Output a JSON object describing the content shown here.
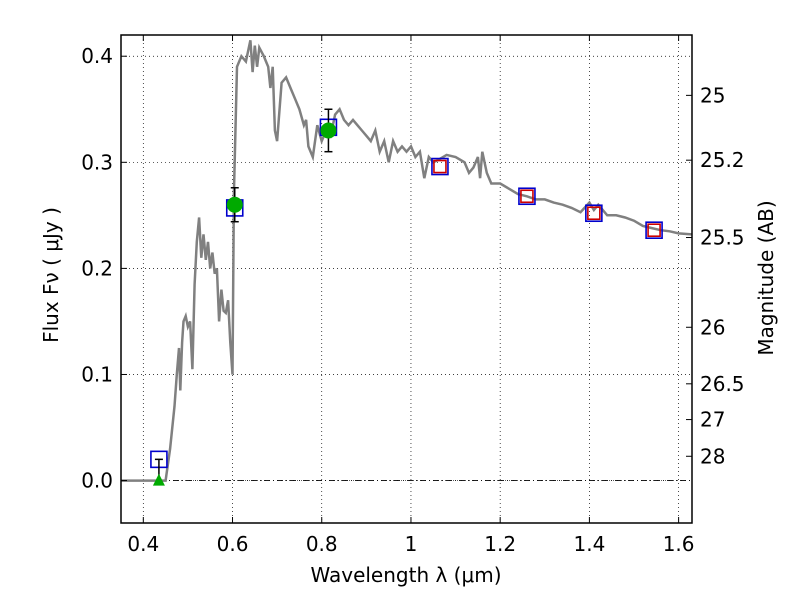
{
  "chart_data": {
    "type": "line",
    "xlabel": "Wavelength  λ (μm)",
    "ylabel": "Flux  Fν  ( μJy )",
    "ylabel_right": "Magnitude (AB)",
    "xlim": [
      0.35,
      1.63
    ],
    "ylim": [
      -0.04,
      0.42
    ],
    "grid": true,
    "x_ticks": [
      0.4,
      0.6,
      0.8,
      1.0,
      1.2,
      1.4,
      1.6
    ],
    "x_tick_labels": [
      "0.4",
      "0.6",
      "0.8",
      "1",
      "1.2",
      "1.4",
      "1.6"
    ],
    "y_ticks": [
      0.0,
      0.1,
      0.2,
      0.3,
      0.4
    ],
    "y_tick_labels": [
      "0.0",
      "0.1",
      "0.2",
      "0.3",
      "0.4"
    ],
    "right_ticks": [
      {
        "flux": 0.3631,
        "label": "25"
      },
      {
        "flux": 0.302,
        "label": "25.2"
      },
      {
        "flux": 0.2291,
        "label": "25.5"
      },
      {
        "flux": 0.1445,
        "label": "26"
      },
      {
        "flux": 0.0912,
        "label": "26.5"
      },
      {
        "flux": 0.0575,
        "label": "27"
      },
      {
        "flux": 0.0229,
        "label": "28"
      }
    ],
    "zero_line": 0.0,
    "series": [
      {
        "kind": "line",
        "color": "#808080",
        "points": [
          [
            0.35,
            0.0
          ],
          [
            0.43,
            0.0
          ],
          [
            0.45,
            0.0
          ],
          [
            0.46,
            0.03
          ],
          [
            0.47,
            0.07
          ],
          [
            0.475,
            0.1
          ],
          [
            0.48,
            0.125
          ],
          [
            0.483,
            0.085
          ],
          [
            0.487,
            0.13
          ],
          [
            0.49,
            0.15
          ],
          [
            0.495,
            0.155
          ],
          [
            0.5,
            0.145
          ],
          [
            0.505,
            0.15
          ],
          [
            0.51,
            0.105
          ],
          [
            0.515,
            0.185
          ],
          [
            0.52,
            0.225
          ],
          [
            0.525,
            0.248
          ],
          [
            0.53,
            0.21
          ],
          [
            0.535,
            0.232
          ],
          [
            0.54,
            0.208
          ],
          [
            0.545,
            0.225
          ],
          [
            0.55,
            0.2
          ],
          [
            0.555,
            0.215
          ],
          [
            0.56,
            0.195
          ],
          [
            0.565,
            0.2
          ],
          [
            0.57,
            0.15
          ],
          [
            0.575,
            0.18
          ],
          [
            0.58,
            0.16
          ],
          [
            0.585,
            0.158
          ],
          [
            0.59,
            0.17
          ],
          [
            0.595,
            0.13
          ],
          [
            0.6,
            0.1
          ],
          [
            0.603,
            0.27
          ],
          [
            0.61,
            0.39
          ],
          [
            0.62,
            0.4
          ],
          [
            0.63,
            0.395
          ],
          [
            0.64,
            0.415
          ],
          [
            0.645,
            0.385
          ],
          [
            0.65,
            0.41
          ],
          [
            0.655,
            0.39
          ],
          [
            0.66,
            0.408
          ],
          [
            0.67,
            0.4
          ],
          [
            0.675,
            0.395
          ],
          [
            0.68,
            0.39
          ],
          [
            0.685,
            0.37
          ],
          [
            0.69,
            0.39
          ],
          [
            0.695,
            0.33
          ],
          [
            0.7,
            0.32
          ],
          [
            0.71,
            0.375
          ],
          [
            0.72,
            0.38
          ],
          [
            0.73,
            0.37
          ],
          [
            0.74,
            0.36
          ],
          [
            0.75,
            0.35
          ],
          [
            0.76,
            0.335
          ],
          [
            0.765,
            0.34
          ],
          [
            0.77,
            0.315
          ],
          [
            0.78,
            0.305
          ],
          [
            0.79,
            0.335
          ],
          [
            0.8,
            0.32
          ],
          [
            0.81,
            0.33
          ],
          [
            0.82,
            0.325
          ],
          [
            0.83,
            0.345
          ],
          [
            0.84,
            0.35
          ],
          [
            0.85,
            0.34
          ],
          [
            0.86,
            0.335
          ],
          [
            0.87,
            0.34
          ],
          [
            0.88,
            0.335
          ],
          [
            0.89,
            0.33
          ],
          [
            0.9,
            0.325
          ],
          [
            0.91,
            0.32
          ],
          [
            0.92,
            0.33
          ],
          [
            0.93,
            0.31
          ],
          [
            0.94,
            0.32
          ],
          [
            0.95,
            0.3
          ],
          [
            0.96,
            0.32
          ],
          [
            0.97,
            0.31
          ],
          [
            0.98,
            0.315
          ],
          [
            0.99,
            0.31
          ],
          [
            1.0,
            0.315
          ],
          [
            1.01,
            0.305
          ],
          [
            1.02,
            0.31
          ],
          [
            1.03,
            0.285
          ],
          [
            1.04,
            0.305
          ],
          [
            1.05,
            0.3
          ],
          [
            1.06,
            0.302
          ],
          [
            1.08,
            0.307
          ],
          [
            1.1,
            0.305
          ],
          [
            1.12,
            0.3
          ],
          [
            1.13,
            0.29
          ],
          [
            1.14,
            0.295
          ],
          [
            1.15,
            0.305
          ],
          [
            1.155,
            0.285
          ],
          [
            1.16,
            0.31
          ],
          [
            1.17,
            0.29
          ],
          [
            1.18,
            0.28
          ],
          [
            1.2,
            0.28
          ],
          [
            1.22,
            0.275
          ],
          [
            1.24,
            0.27
          ],
          [
            1.26,
            0.268
          ],
          [
            1.28,
            0.265
          ],
          [
            1.3,
            0.265
          ],
          [
            1.32,
            0.262
          ],
          [
            1.34,
            0.26
          ],
          [
            1.36,
            0.257
          ],
          [
            1.38,
            0.253
          ],
          [
            1.4,
            0.262
          ],
          [
            1.41,
            0.255
          ],
          [
            1.42,
            0.26
          ],
          [
            1.44,
            0.25
          ],
          [
            1.46,
            0.25
          ],
          [
            1.48,
            0.248
          ],
          [
            1.5,
            0.245
          ],
          [
            1.52,
            0.24
          ],
          [
            1.54,
            0.238
          ],
          [
            1.56,
            0.236
          ],
          [
            1.58,
            0.235
          ],
          [
            1.6,
            0.233
          ],
          [
            1.63,
            0.232
          ]
        ]
      },
      {
        "kind": "open-square",
        "color": "#0000cc",
        "points": [
          [
            0.435,
            0.02
          ],
          [
            0.605,
            0.257
          ],
          [
            0.815,
            0.333
          ],
          [
            1.065,
            0.296
          ],
          [
            1.26,
            0.268
          ],
          [
            1.41,
            0.252
          ],
          [
            1.545,
            0.236
          ]
        ]
      },
      {
        "kind": "open-square",
        "color": "#cc0000",
        "points": [
          [
            1.065,
            0.296
          ],
          [
            1.26,
            0.268
          ],
          [
            1.41,
            0.252
          ],
          [
            1.545,
            0.236
          ]
        ]
      },
      {
        "kind": "filled-circle",
        "color": "#00aa00",
        "points": [
          [
            0.605,
            0.26
          ],
          [
            0.815,
            0.33
          ]
        ],
        "errors": [
          0.016,
          0.02
        ]
      },
      {
        "kind": "filled-triangle",
        "color": "#00aa00",
        "points": [
          [
            0.435,
            0.0
          ]
        ],
        "errors": [
          0.02
        ]
      }
    ]
  }
}
